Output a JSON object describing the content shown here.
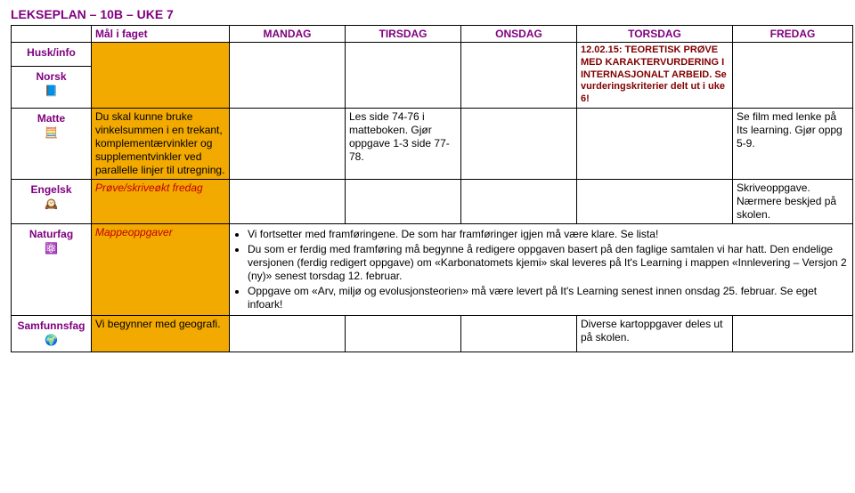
{
  "title": "LEKSEPLAN – 10B – UKE 7",
  "headers": {
    "goal": "Mål i faget",
    "mon": "MANDAG",
    "tue": "TIRSDAG",
    "wed": "ONSDAG",
    "thu": "TORSDAG",
    "fri": "FREDAG"
  },
  "huskinfo_label": "Husk/info",
  "huskinfo_thu": "12.02.15: TEORETISK PRØVE MED KARAKTERVURDERING I INTERNASJONALT ARBEID. Se vurderingskriterier delt ut i uke 6!",
  "subjects": {
    "norsk": {
      "label": "Norsk"
    },
    "matte": {
      "label": "Matte",
      "goal": "Du skal kunne bruke vinkelsummen i en trekant, komplementærvinkler og supplementvinkler ved parallelle linjer til utregning.",
      "tue": "Les side 74-76 i matteboken. Gjør oppgave 1-3 side 77-78.",
      "fri": "Se film med lenke på Its learning. Gjør oppg 5-9."
    },
    "engelsk": {
      "label": "Engelsk",
      "goal": "Prøve/skriveøkt fredag",
      "fri": "Skriveoppgave. Nærmere beskjed på skolen."
    },
    "naturfag": {
      "label": "Naturfag",
      "goal": "Mappeoppgaver",
      "bullets": [
        "Vi fortsetter med framføringene. De som har framføringer igjen må være klare. Se lista!",
        "Du som er ferdig med framføring må begynne å redigere oppgaven basert på den faglige samtalen vi har hatt. Den endelige versjonen (ferdig redigert oppgave) om «Karbonatomets kjemi» skal leveres på It's Learning i mappen «Innlevering – Versjon 2 (ny)» senest torsdag 12. februar.",
        "Oppgave om «Arv, miljø og evolusjonsteorien» må være levert på It's Learning senest innen onsdag 25. februar. Se eget infoark!"
      ]
    },
    "samfunnsfag": {
      "label": "Samfunnsfag",
      "goal": "Vi begynner med geografi.",
      "thu": "Diverse kartoppgaver deles ut på skolen."
    }
  },
  "icons": {
    "norsk_emoji": "📘",
    "matte_emoji": "🧮",
    "engelsk_emoji": "🕰️",
    "naturfag_emoji": "⚛️",
    "samfunnsfag_emoji": "🌍"
  }
}
